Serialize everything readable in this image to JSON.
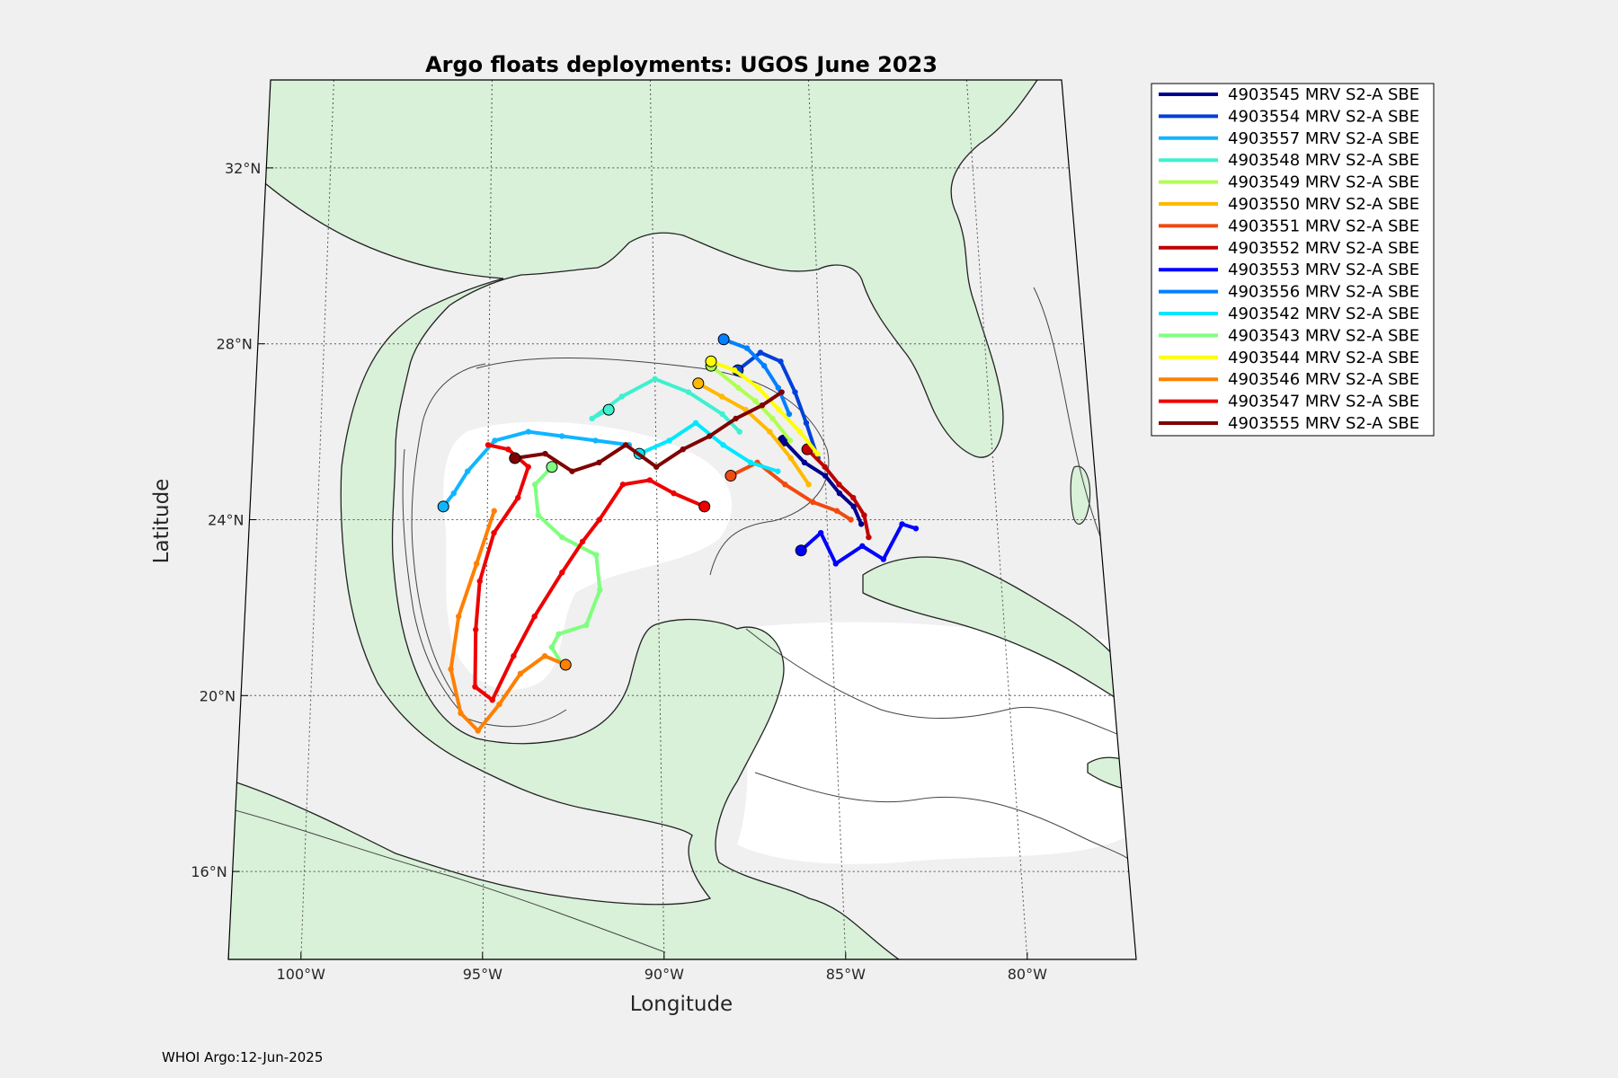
{
  "title": "Argo floats deployments: UGOS June 2023",
  "xlabel": "Longitude",
  "ylabel": "Latitude",
  "footer": "WHOI Argo:12-Jun-2025",
  "x_ticks": [
    {
      "value": -100,
      "label": "100°W"
    },
    {
      "value": -95,
      "label": "95°W"
    },
    {
      "value": -90,
      "label": "90°W"
    },
    {
      "value": -85,
      "label": "85°W"
    },
    {
      "value": -80,
      "label": "80°W"
    }
  ],
  "y_ticks": [
    {
      "value": 32,
      "label": "32°N"
    },
    {
      "value": 28,
      "label": "28°N"
    },
    {
      "value": 24,
      "label": "24°N"
    },
    {
      "value": 20,
      "label": "20°N"
    },
    {
      "value": 16,
      "label": "16°N"
    }
  ],
  "colors": {
    "land": "#d9f0d9",
    "shelf": "#f0f0f0",
    "deep": "#ffffff",
    "frame": "#000000",
    "grid": "#555555"
  },
  "chart_data": {
    "type": "line",
    "map_extent": {
      "lon": [
        -102,
        -77
      ],
      "lat": [
        14,
        34
      ]
    },
    "grid": true,
    "legend_location": "outside-top-right",
    "series": [
      {
        "name": "4903545 MRV S2-A SBE",
        "color": "#00008f",
        "lon": [
          -86.2,
          -85.6,
          -85.0,
          -84.6,
          -84.2,
          -84.0
        ],
        "lat": [
          25.8,
          25.3,
          25.0,
          24.6,
          24.3,
          23.9
        ]
      },
      {
        "name": "4903554 MRV S2-A SBE",
        "color": "#0040d9",
        "lon": [
          -87.5,
          -86.8,
          -86.2,
          -85.8,
          -85.5,
          -85.2
        ],
        "lat": [
          27.4,
          27.8,
          27.6,
          26.9,
          26.2,
          25.4
        ]
      },
      {
        "name": "4903557 MRV S2-A SBE",
        "color": "#10b5ff",
        "lon": [
          -96.3,
          -96.0,
          -95.6,
          -94.8,
          -93.8,
          -92.8,
          -91.8,
          -90.8
        ],
        "lat": [
          24.3,
          24.6,
          25.1,
          25.8,
          26.0,
          25.9,
          25.8,
          25.7
        ]
      },
      {
        "name": "4903548 MRV S2-A SBE",
        "color": "#3ff0cf",
        "lon": [
          -91.4,
          -91.9,
          -91.0,
          -90.0,
          -89.0,
          -88.0,
          -87.5
        ],
        "lat": [
          26.5,
          26.3,
          26.8,
          27.2,
          26.9,
          26.4,
          26.0
        ]
      },
      {
        "name": "4903549 MRV S2-A SBE",
        "color": "#afff4f",
        "lon": [
          -88.3,
          -87.5,
          -87.0,
          -86.5,
          -86.0
        ],
        "lat": [
          27.5,
          27.0,
          26.7,
          26.3,
          25.8
        ]
      },
      {
        "name": "4903550 MRV S2-A SBE",
        "color": "#ffb900",
        "lon": [
          -88.7,
          -88.0,
          -87.3,
          -86.6,
          -86.0,
          -85.5
        ],
        "lat": [
          27.1,
          26.8,
          26.5,
          26.0,
          25.4,
          24.8
        ]
      },
      {
        "name": "4903551 MRV S2-A SBE",
        "color": "#f04a10",
        "lon": [
          -87.8,
          -87.0,
          -86.2,
          -85.4,
          -84.7,
          -84.3
        ],
        "lat": [
          25.0,
          25.3,
          24.8,
          24.4,
          24.2,
          24.0
        ]
      },
      {
        "name": "4903552 MRV S2-A SBE",
        "color": "#bf0000",
        "lon": [
          -85.5,
          -85.0,
          -84.6,
          -84.2,
          -83.9,
          -83.8
        ],
        "lat": [
          25.6,
          25.2,
          24.8,
          24.5,
          24.1,
          23.6
        ]
      },
      {
        "name": "4903553 MRV S2-A SBE",
        "color": "#0000ff",
        "lon": [
          -85.8,
          -85.2,
          -84.8,
          -84.0,
          -83.4,
          -82.8,
          -82.4
        ],
        "lat": [
          23.3,
          23.7,
          23.0,
          23.4,
          23.1,
          23.9,
          23.8
        ]
      },
      {
        "name": "4903556 MRV S2-A SBE",
        "color": "#0080ff",
        "lon": [
          -87.9,
          -87.2,
          -86.7,
          -86.3,
          -86.0
        ],
        "lat": [
          28.1,
          27.9,
          27.5,
          27.0,
          26.4
        ]
      },
      {
        "name": "4903542 MRV S2-A SBE",
        "color": "#00e8ff",
        "lon": [
          -90.5,
          -89.6,
          -88.8,
          -88.0,
          -87.2,
          -86.4
        ],
        "lat": [
          25.5,
          25.8,
          26.2,
          25.7,
          25.3,
          25.1
        ]
      },
      {
        "name": "4903543 MRV S2-A SBE",
        "color": "#7fff7f",
        "lon": [
          -93.1,
          -93.6,
          -93.5,
          -92.8,
          -91.8,
          -91.7,
          -92.1,
          -92.9,
          -93.1,
          -92.8
        ],
        "lat": [
          25.2,
          24.8,
          24.1,
          23.6,
          23.2,
          22.4,
          21.6,
          21.4,
          21.1,
          20.7
        ]
      },
      {
        "name": "4903544 MRV S2-A SBE",
        "color": "#ffff00",
        "lon": [
          -88.3,
          -87.6,
          -86.9,
          -86.3,
          -85.7,
          -85.2
        ],
        "lat": [
          27.6,
          27.4,
          27.0,
          26.5,
          26.0,
          25.5
        ]
      },
      {
        "name": "4903546 MRV S2-A SBE",
        "color": "#ff7f00",
        "lon": [
          -92.7,
          -93.3,
          -94.0,
          -94.6,
          -95.2,
          -95.7,
          -96.0,
          -95.8,
          -95.3,
          -94.8
        ],
        "lat": [
          20.7,
          20.9,
          20.5,
          19.8,
          19.2,
          19.6,
          20.6,
          21.8,
          23.0,
          24.2
        ]
      },
      {
        "name": "4903547 MRV S2-A SBE",
        "color": "#ef0000",
        "lon": [
          -88.6,
          -89.5,
          -90.2,
          -91.0,
          -91.7,
          -92.2,
          -92.8,
          -93.6,
          -94.2,
          -94.8,
          -95.3,
          -95.3,
          -95.2,
          -94.8,
          -94.1,
          -93.8,
          -94.4,
          -95.0
        ],
        "lat": [
          24.3,
          24.6,
          24.9,
          24.8,
          24.0,
          23.5,
          22.8,
          21.8,
          20.9,
          19.9,
          20.2,
          21.5,
          22.6,
          23.7,
          24.5,
          25.2,
          25.6,
          25.7
        ]
      },
      {
        "name": "4903555 MRV S2-A SBE",
        "color": "#7f0000",
        "lon": [
          -94.2,
          -93.3,
          -92.5,
          -91.7,
          -90.9,
          -90.0,
          -89.2,
          -88.4,
          -87.6,
          -86.8,
          -86.2
        ],
        "lat": [
          25.4,
          25.5,
          25.1,
          25.3,
          25.7,
          25.2,
          25.6,
          25.9,
          26.3,
          26.6,
          26.9
        ]
      }
    ]
  }
}
